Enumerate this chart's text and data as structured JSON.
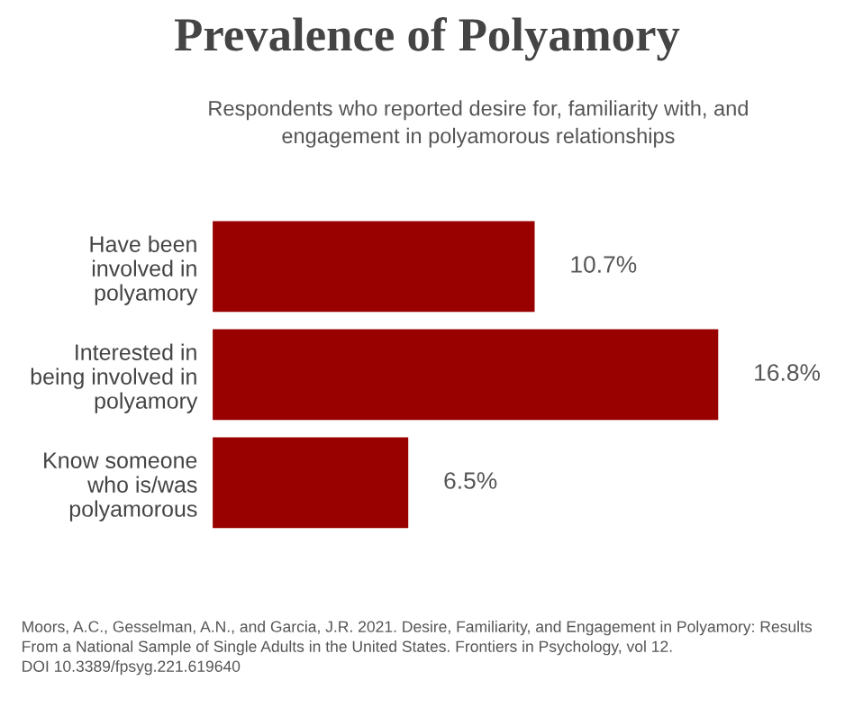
{
  "chart_data": {
    "type": "bar",
    "orientation": "horizontal",
    "title": "Prevalence of Polyamory",
    "subtitle": "Respondents who reported desire for, familiarity with, and\nengagement in polyamorous relationships",
    "categories": [
      "Have been\ninvolved in\npolyamory",
      "Interested in\nbeing involved in\npolyamory",
      "Know someone\nwho is/was\npolyamorous"
    ],
    "values": [
      10.7,
      16.8,
      6.5
    ],
    "value_labels": [
      "10.7%",
      "16.8%",
      "6.5%"
    ],
    "color": "#990000",
    "annotations": [
      "Moors, A.C., Gesselman, A.N., and Garcia, J.R. 2021. Desire, Familiarity, and Engagement in Polyamory: Results\nFrom a National Sample of Single Adults in the United States. Frontiers in Psychology, vol 12.\nDOI 10.3389/fpsyg.221.619640"
    ],
    "grid": false,
    "legend": false
  }
}
